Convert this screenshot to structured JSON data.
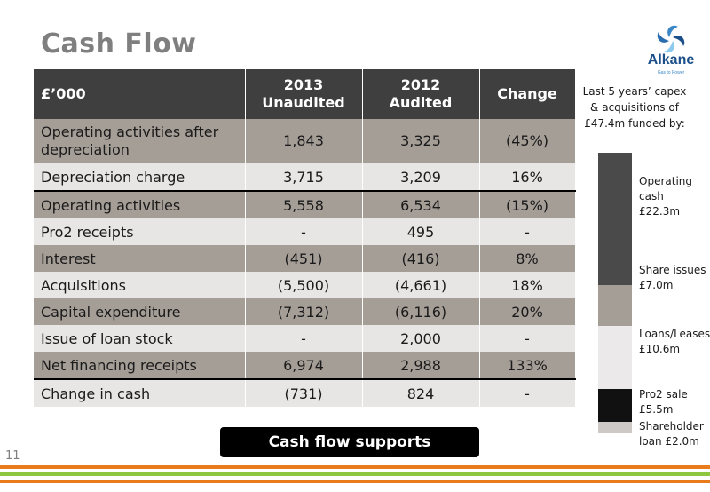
{
  "slide": {
    "title": "Cash Flow",
    "page_number": "11",
    "callout": "Cash flow supports investment"
  },
  "logo": {
    "name": "Alkane",
    "tagline": "Gas to Power",
    "icon": "alkane-swirl-logo",
    "colors": [
      "#1b4f8a",
      "#3a87c8",
      "#8ec9ee"
    ]
  },
  "table": {
    "headers": [
      {
        "line1": "£’000",
        "line2": ""
      },
      {
        "line1": "2013",
        "line2": "Unaudited"
      },
      {
        "line1": "2012",
        "line2": "Audited"
      },
      {
        "line1": "Change",
        "line2": ""
      }
    ],
    "rows": [
      {
        "label": "Operating activities after depreciation",
        "y2013": "1,843",
        "y2012": "3,325",
        "change": "(45%)"
      },
      {
        "label": "Depreciation charge",
        "y2013": "3,715",
        "y2012": "3,209",
        "change": "16%"
      },
      {
        "label": "Operating activities",
        "y2013": "5,558",
        "y2012": "6,534",
        "change": "(15%)"
      },
      {
        "label": "Pro2 receipts",
        "y2013": "-",
        "y2012": "495",
        "change": "-"
      },
      {
        "label": "Interest",
        "y2013": "(451)",
        "y2012": "(416)",
        "change": "8%"
      },
      {
        "label": "Acquisitions",
        "y2013": "(5,500)",
        "y2012": "(4,661)",
        "change": "18%"
      },
      {
        "label": "Capital expenditure",
        "y2013": "(7,312)",
        "y2012": "(6,116)",
        "change": "20%"
      },
      {
        "label": "Issue of loan stock",
        "y2013": "-",
        "y2012": "2,000",
        "change": "-"
      },
      {
        "label": "Net financing receipts",
        "y2013": "6,974",
        "y2012": "2,988",
        "change": "133%"
      },
      {
        "label": "Change in cash",
        "y2013": "(731)",
        "y2012": "824",
        "change": "-"
      }
    ]
  },
  "capex": {
    "note": "Last 5 years’ capex & acquisitions of £47.4m funded by:",
    "segments": [
      {
        "label_line1": "Operating",
        "label_line2": "cash",
        "label_line3": "£22.3m",
        "value": 22.3,
        "color": "#4a4a4a"
      },
      {
        "label_line1": "Share issues",
        "label_line2": "£7.0m",
        "value": 7.0,
        "color": "#a59e97"
      },
      {
        "label_line1": "Loans/Leases",
        "label_line2": "£10.6m",
        "value": 10.6,
        "color": "#ebe9e9"
      },
      {
        "label_line1": "Pro2 sale",
        "label_line2": "£5.5m",
        "value": 5.5,
        "color": "#111111"
      },
      {
        "label_line1": "Shareholder",
        "label_line2": "loan £2.0m",
        "value": 2.0,
        "color": "#cfc9c6"
      }
    ]
  },
  "stripes": [
    "#e97b1c",
    "#8dc63f",
    "#e97b1c"
  ]
}
